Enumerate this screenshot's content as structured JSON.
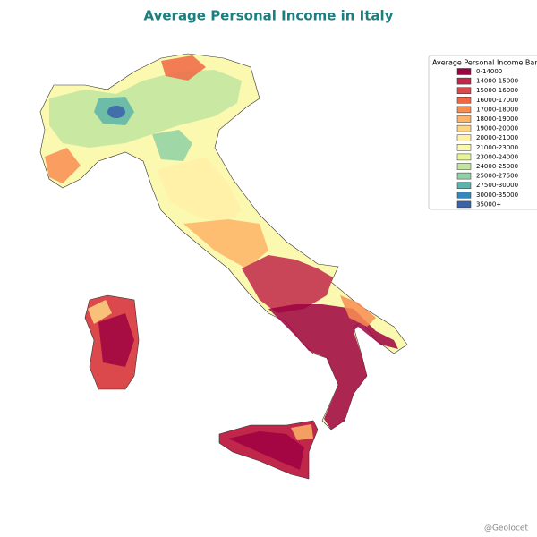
{
  "title": "Average Personal Income in Italy",
  "legend": {
    "title": "Average Personal Income Band",
    "items": [
      {
        "label": "0-14000",
        "color": "#9e0142"
      },
      {
        "label": "14000-15000",
        "color": "#c0274a"
      },
      {
        "label": "15000-16000",
        "color": "#dc494c"
      },
      {
        "label": "16000-17000",
        "color": "#f06744"
      },
      {
        "label": "17000-18000",
        "color": "#f88d52"
      },
      {
        "label": "18000-19000",
        "color": "#fdb466"
      },
      {
        "label": "19000-20000",
        "color": "#fed582"
      },
      {
        "label": "20000-21000",
        "color": "#fff0a6"
      },
      {
        "label": "21000-23000",
        "color": "#fbf8b0"
      },
      {
        "label": "23000-24000",
        "color": "#e6f598"
      },
      {
        "label": "24000-25000",
        "color": "#bfe5a0"
      },
      {
        "label": "25000-27500",
        "color": "#8fd1a4"
      },
      {
        "label": "27500-30000",
        "color": "#5db4a9"
      },
      {
        "label": "30000-35000",
        "color": "#3288bd"
      },
      {
        "label": "35000+",
        "color": "#3a62aa"
      }
    ]
  },
  "credit": "@Geolocet"
}
